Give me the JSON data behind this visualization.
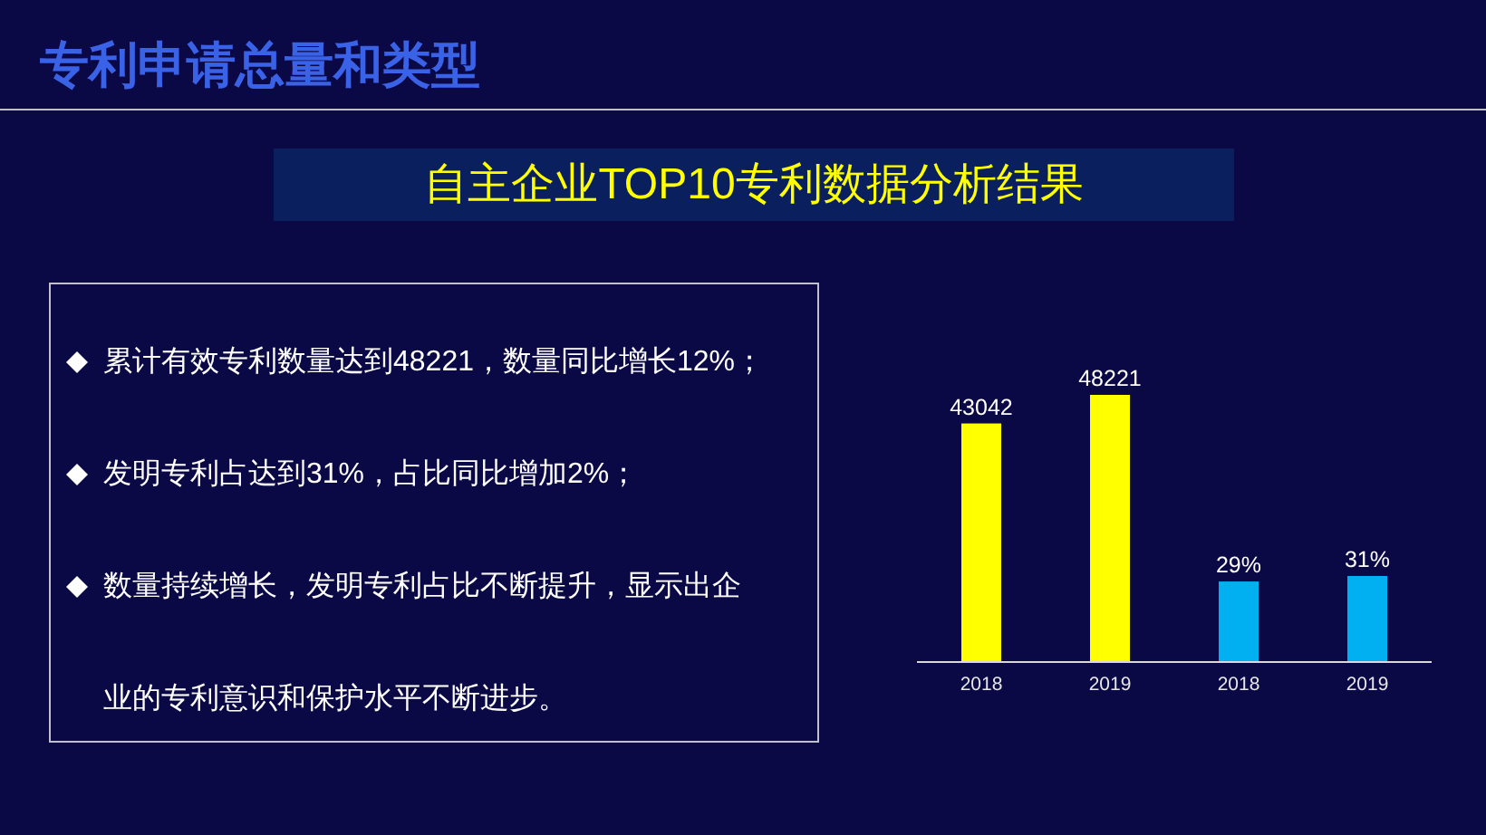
{
  "chart_data": {
    "type": "bar",
    "title": "专利申请总量和类型",
    "subtitle": "自主企业TOP10专利数据分析结果",
    "annotations": [
      "累计有效专利数量达到48221，数量同比增长12%；",
      "发明专利占达到31%，占比同比增加2%；",
      "数量持续增长，发明专利占比不断提升，显示出企业的专利意识和保护水平不断进步。"
    ],
    "categories": [
      "2018",
      "2019",
      "2018",
      "2019"
    ],
    "series": [
      {
        "color": "#ffff00",
        "values": [
          43042,
          48221,
          null,
          null
        ],
        "value_labels": [
          "43042",
          "48221",
          null,
          null
        ]
      },
      {
        "color": "#00b0f0",
        "axis": "y2",
        "values": [
          null,
          null,
          29,
          31
        ],
        "value_labels": [
          null,
          null,
          "29%",
          "31%"
        ]
      }
    ],
    "tick_labels": "x"
  }
}
